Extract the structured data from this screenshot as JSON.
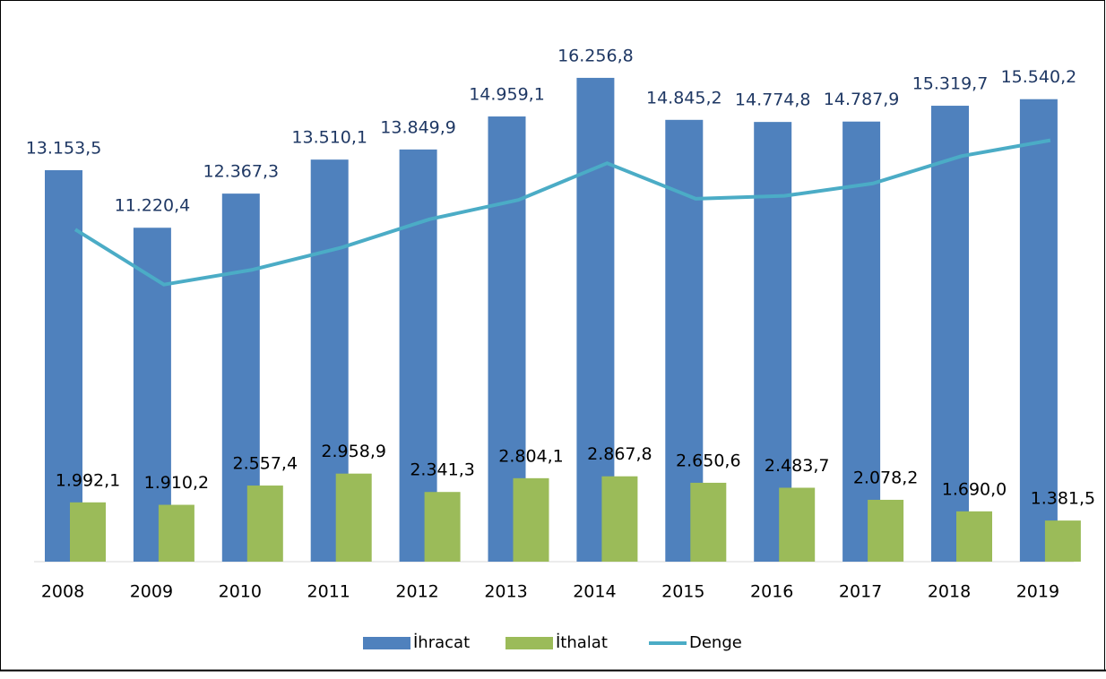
{
  "chart_data": {
    "type": "bar",
    "categories": [
      "2008",
      "2009",
      "2010",
      "2011",
      "2012",
      "2013",
      "2014",
      "2015",
      "2016",
      "2017",
      "2018",
      "2019"
    ],
    "series": [
      {
        "name": "İhracat",
        "color": "#4f81bd",
        "type": "bar",
        "values": [
          13153.5,
          11220.4,
          12367.3,
          13510.1,
          13849.9,
          14959.1,
          16256.8,
          14845.2,
          14774.8,
          14787.9,
          15319.7,
          15540.2
        ],
        "value_labels": [
          "13.153,5",
          "11.220,4",
          "12.367,3",
          "13.510,1",
          "13.849,9",
          "14.959,1",
          "16.256,8",
          "14.845,2",
          "14.774,8",
          "14.787,9",
          "15.319,7",
          "15.540,2"
        ]
      },
      {
        "name": "İthalat",
        "color": "#9bbb59",
        "type": "bar",
        "values": [
          1992.1,
          1910.2,
          2557.4,
          2958.9,
          2341.3,
          2804.1,
          2867.8,
          2650.6,
          2483.7,
          2078.2,
          1690.0,
          1381.5
        ],
        "value_labels": [
          "1.992,1",
          "1.910,2",
          "2.557,4",
          "2.958,9",
          "2.341,3",
          "2.804,1",
          "2.867,8",
          "2.650,6",
          "2.483,7",
          "2.078,2",
          "1.690,0",
          "1.381,5"
        ]
      },
      {
        "name": "Denge",
        "color": "#4bacc6",
        "type": "line",
        "values": [
          11161.4,
          9310.2,
          9809.9,
          10551.2,
          11508.6,
          12155.0,
          13389.0,
          12194.6,
          12291.1,
          12709.7,
          13629.7,
          14158.7
        ]
      }
    ],
    "ylim": [
      0,
      18000
    ],
    "legend": "bottom"
  }
}
